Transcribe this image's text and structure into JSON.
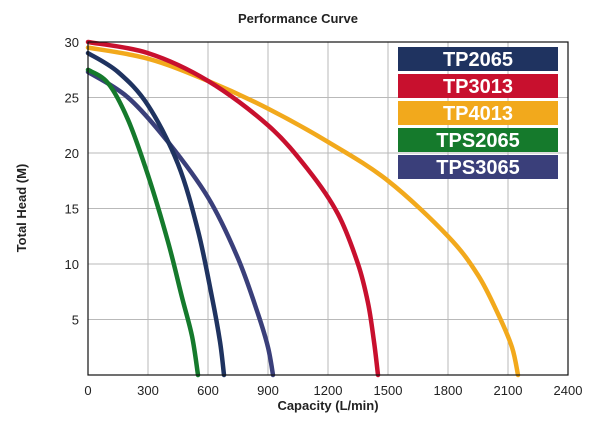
{
  "chart_data": {
    "type": "line",
    "title": "Performance Curve",
    "xlabel": "Capacity (L/min)",
    "ylabel": "Total Head (M)",
    "xlim": [
      0,
      2400
    ],
    "ylim": [
      0,
      30
    ],
    "x_ticks": [
      "0",
      "300",
      "600",
      "900",
      "1200",
      "1500",
      "1800",
      "2100",
      "2400"
    ],
    "y_ticks": [
      "5",
      "10",
      "15",
      "20",
      "25",
      "30"
    ],
    "grid": true,
    "legend_position": "top-right",
    "series": [
      {
        "name": "TP2065",
        "color": "#1f3360",
        "points": [
          [
            0,
            29.0
          ],
          [
            150,
            27.3
          ],
          [
            300,
            24.3
          ],
          [
            450,
            19.0
          ],
          [
            550,
            13.0
          ],
          [
            620,
            7.0
          ],
          [
            660,
            3.0
          ],
          [
            680,
            0
          ]
        ]
      },
      {
        "name": "TP3013",
        "color": "#c8102e",
        "points": [
          [
            0,
            30.0
          ],
          [
            300,
            29.0
          ],
          [
            600,
            26.5
          ],
          [
            900,
            22.5
          ],
          [
            1100,
            18.5
          ],
          [
            1250,
            14.5
          ],
          [
            1350,
            10.0
          ],
          [
            1400,
            6.5
          ],
          [
            1430,
            3.0
          ],
          [
            1450,
            0
          ]
        ]
      },
      {
        "name": "TP4013",
        "color": "#f2a91c",
        "points": [
          [
            0,
            29.5
          ],
          [
            300,
            28.5
          ],
          [
            600,
            26.5
          ],
          [
            900,
            24.0
          ],
          [
            1200,
            21.0
          ],
          [
            1500,
            17.5
          ],
          [
            1800,
            12.5
          ],
          [
            1950,
            9.0
          ],
          [
            2050,
            5.5
          ],
          [
            2120,
            2.5
          ],
          [
            2150,
            0
          ]
        ]
      },
      {
        "name": "TPS2065",
        "color": "#157a2c",
        "points": [
          [
            0,
            27.5
          ],
          [
            100,
            26.3
          ],
          [
            200,
            23.0
          ],
          [
            300,
            18.0
          ],
          [
            400,
            12.0
          ],
          [
            470,
            7.0
          ],
          [
            520,
            3.5
          ],
          [
            550,
            0
          ]
        ]
      },
      {
        "name": "TPS3065",
        "color": "#3a3f7a",
        "points": [
          [
            0,
            27.3
          ],
          [
            200,
            25.0
          ],
          [
            400,
            21.0
          ],
          [
            600,
            16.0
          ],
          [
            750,
            10.5
          ],
          [
            850,
            5.5
          ],
          [
            900,
            2.5
          ],
          [
            925,
            0
          ]
        ]
      }
    ]
  }
}
